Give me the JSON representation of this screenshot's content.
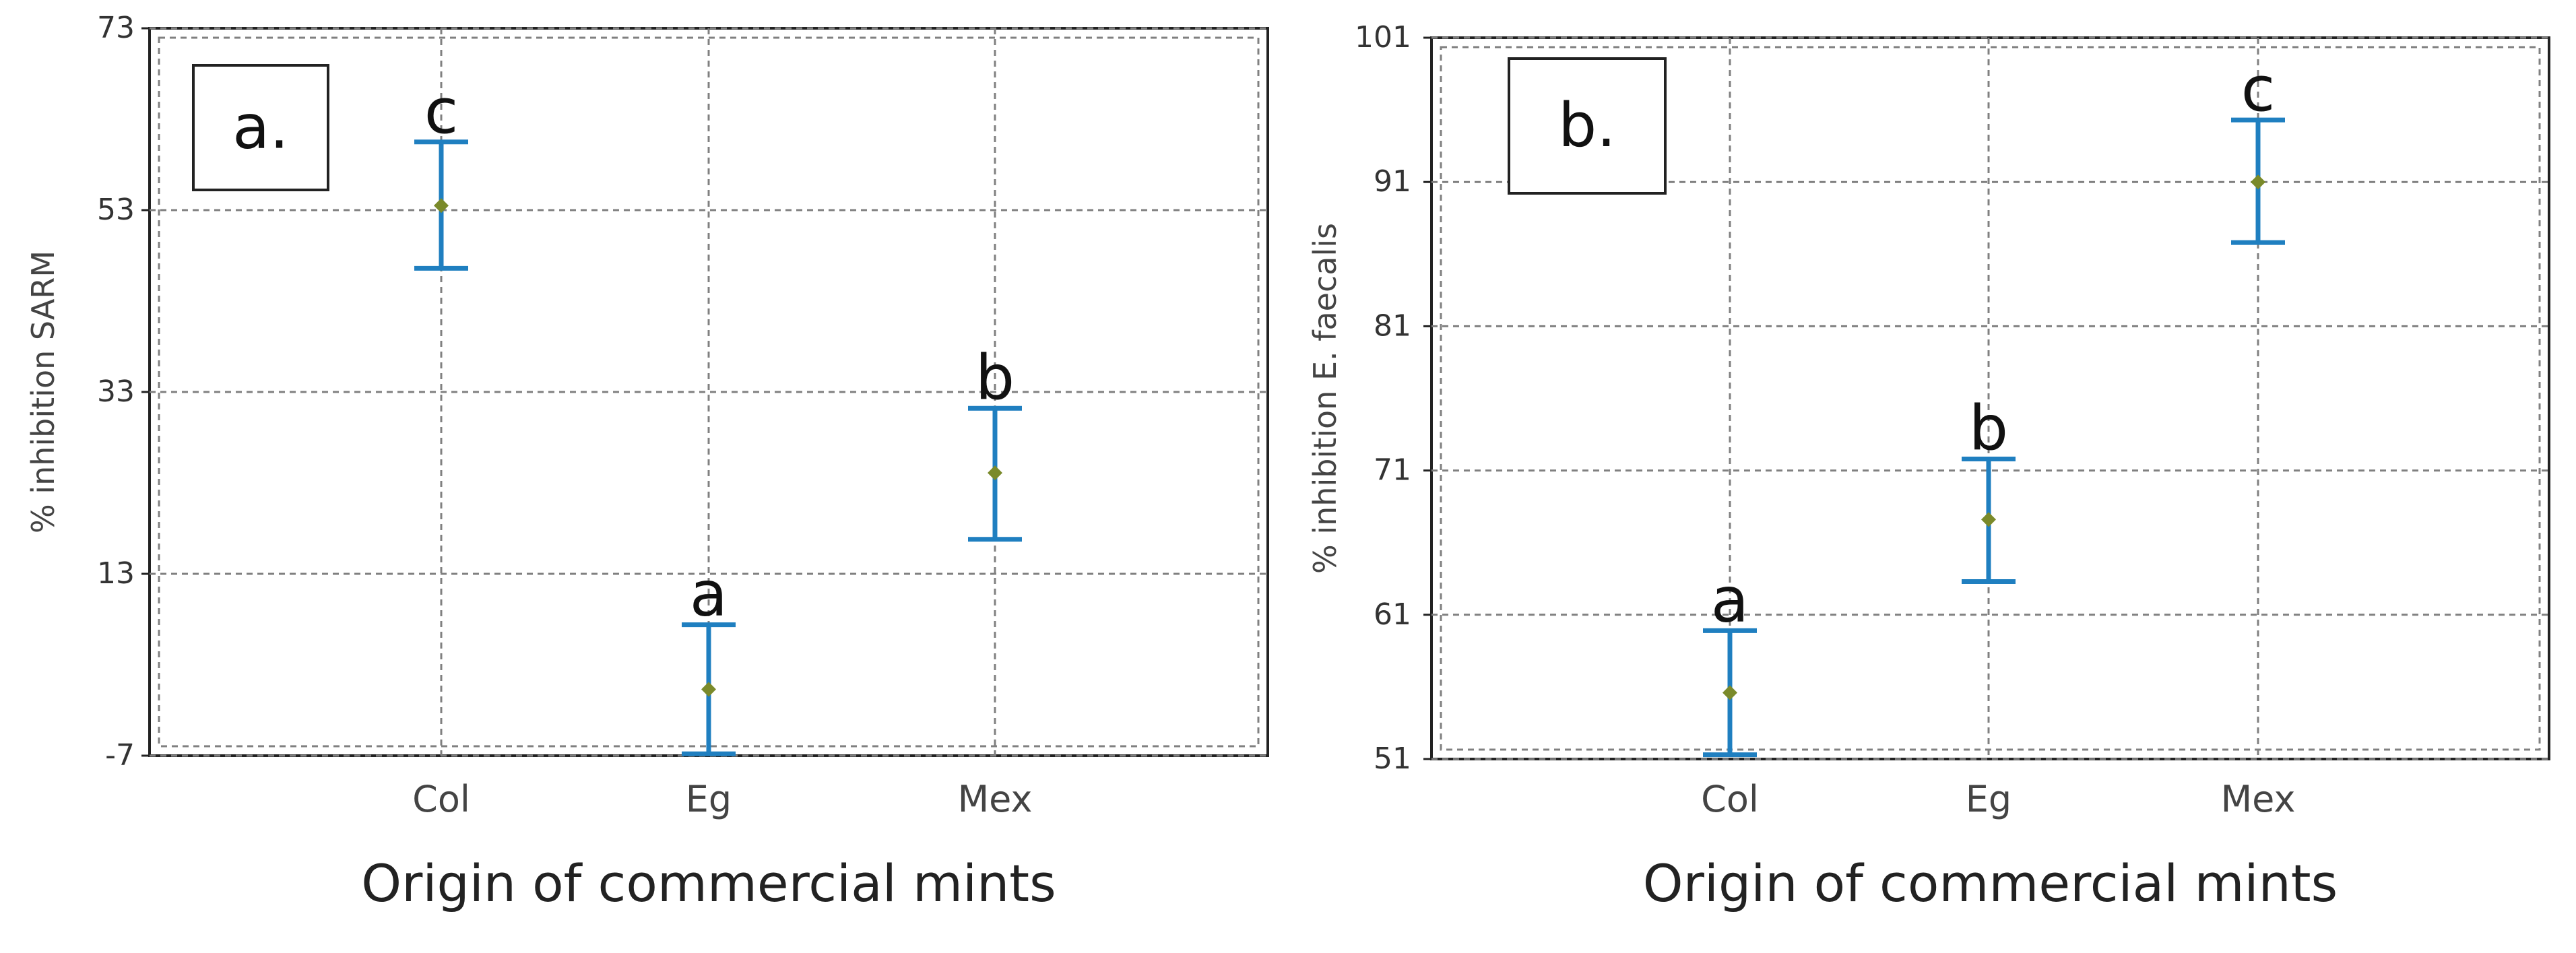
{
  "chart_data": [
    {
      "type": "scatter",
      "subtype": "means-with-error-bars",
      "panel_label": "a.",
      "xlabel": "Origin of commercial mints",
      "ylabel": "% inhibition SARM",
      "categories": [
        "Col",
        "Eg",
        "Mex"
      ],
      "yticks": [
        -7,
        13,
        33,
        53,
        73
      ],
      "ylim": [
        -7,
        73
      ],
      "grid": true,
      "points": [
        {
          "category": "Col",
          "mean": 53.5,
          "lower": 46.6,
          "upper": 60.5,
          "letter": "c"
        },
        {
          "category": "Eg",
          "mean": 0.3,
          "lower": -6.8,
          "upper": 7.4,
          "letter": "a"
        },
        {
          "category": "Mex",
          "mean": 24.1,
          "lower": 16.8,
          "upper": 31.2,
          "letter": "b"
        }
      ]
    },
    {
      "type": "scatter",
      "subtype": "means-with-error-bars",
      "panel_label": "b.",
      "xlabel": "Origin of commercial mints",
      "ylabel": "% inhibition E. faecalis",
      "categories": [
        "Col",
        "Eg",
        "Mex"
      ],
      "yticks": [
        51,
        61,
        71,
        81,
        91,
        101
      ],
      "ylim": [
        51,
        101
      ],
      "grid": true,
      "points": [
        {
          "category": "Col",
          "mean": 55.6,
          "lower": 51.3,
          "upper": 59.9,
          "letter": "a"
        },
        {
          "category": "Eg",
          "mean": 67.6,
          "lower": 63.3,
          "upper": 71.8,
          "letter": "b"
        },
        {
          "category": "Mex",
          "mean": 91.0,
          "lower": 86.8,
          "upper": 95.3,
          "letter": "c"
        }
      ]
    }
  ],
  "colors": {
    "error_bar": "#1f7fc0",
    "mean_marker": "#7a8a2a",
    "grid": "#808080",
    "frame": "#222222",
    "tick_text": "#333333",
    "axis_text": "#444444"
  }
}
